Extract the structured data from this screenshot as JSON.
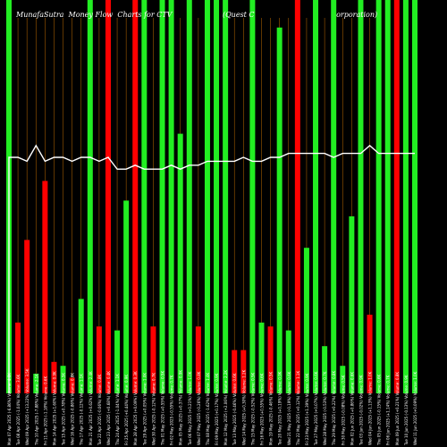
{
  "header": {
    "title_left": "MunafaSutra  Money Flow  Charts for CTV",
    "title_right": "(Quest C                                    orporation)"
  },
  "colors": {
    "background": "#000000",
    "buy": "#22ee22",
    "sell": "#ff0000",
    "grid": "#a05a00",
    "line": "#ffffff",
    "tick_text": "#ffffff"
  },
  "chart_data": {
    "type": "bar",
    "title": "MunafaSutra  Money Flow  Charts for CTV                (Quest C                                    orporation)",
    "grid": true,
    "categories": [
      "Mon 07 Apr 2025",
      "Tue 08 Apr 2025",
      "Wed 09 Apr 2025",
      "Thu 10 Apr 2025",
      "Fri 11 Apr 2025",
      "Mon 14 Apr 2025",
      "Tue 15 Apr 2025",
      "Wed 16 Apr 2025",
      "Thu 17 Apr 2025",
      "Mon 21 Apr 2025",
      "Tue 22 Apr 2025",
      "Wed 23 Apr 2025",
      "Thu 24 Apr 2025",
      "Fri 25 Apr 2025",
      "Mon 28 Apr 2025",
      "Tue 29 Apr 2025",
      "Wed 30 Apr 2025",
      "Thu 01 May 2025",
      "Fri 02 May 2025",
      "Mon 05 May 2025",
      "Tue 06 May 2025",
      "Wed 07 May 2025",
      "Thu 08 May 2025",
      "Fri 09 May 2025",
      "Mon 12 May 2025",
      "Tue 13 May 2025",
      "Wed 14 May 2025",
      "Thu 15 May 2025",
      "Fri 16 May 2025",
      "Mon 19 May 2025",
      "Tue 20 May 2025",
      "Wed 21 May 2025",
      "Thu 22 May 2025",
      "Fri 23 May 2025",
      "Tue 27 May 2025",
      "Wed 28 May 2025",
      "Thu 29 May 2025",
      "Fri 30 May 2025",
      "Mon 02 Jun 2025",
      "Tue 03 Jun 2025",
      "Wed 04 Jun 2025",
      "Thu 05 Jun 2025",
      "Fri 06 Jun 2025",
      "Mon 09 Jun 2025",
      "Tue 10 Jun 2025",
      "Wed 11 Jun 2025"
    ],
    "x_tick_labels": [
      "Mon 07 Apr 2025 (-6.86%) Volume: 4.8K",
      "Tue 08 Apr 2025 (-1.04%) Volume: 3.6K",
      "Wed 09 Apr 2025 (+13.22%) Volume: 3.5K",
      "Thu 10 Apr 2025 (-7.88%) Volume: 2.1K",
      "Fri 11 Apr 2025 (-1.18%) Volume: 0.6K",
      "Mon 14 Apr 2025 (+1.60%) Volume: 0.9K",
      "Tue 15 Apr 2025 (+0.78%) Volume: 0.5K",
      "Wed 16 Apr 2025 (-0.86%) Volume: 0.8K",
      "Thu 17 Apr 2025 (-0.12%) Volume: 1.1K",
      "Mon 21 Apr 2025 (+0.62%) Volume: 2.4K",
      "Tue 22 Apr 2025 (-0.06%) Volume: 0.8K",
      "Wed 23 Apr 2025 (+0.68%) Volume: 0.4K",
      "Thu 24 Apr 2025 (-1.04%) Volume: 1.1K",
      "Fri 25 Apr 2025 (+0.44%) Volume: 0.9K",
      "Mon 28 Apr 2025 (+0.09%) Volume: 0.3K",
      "Tue 29 Apr 2025 (+0.05%) Volume: 1.0K",
      "Wed 30 Apr 2025 (-0.12%) Volume: 0.7K",
      "Thu 01 May 2025 (+0.55%) Volume: 0.5K",
      "Fri 02 May 2025 (-0.55%) Volume: 0.7K",
      "Mon 05 May 2025 (+0.37%) Volume: 0.9K",
      "Tue 06 May 2025 (+0.21%) Volume: 1.0K",
      "Wed 07 May 2025 (-0.26%) Volume: 0.8K",
      "Thu 08 May 2025 (-1.62%) Volume: 1.4K",
      "Fri 09 May 2025 (+0.17%) Volume: 0.9K",
      "Mon 12 May 2025 (+2.06%) Volume: 2.2K",
      "Tue 13 May 2025 (-0.46%) Volume: 0.6K",
      "Wed 14 May 2025 (+0.30%) Volume: 1.2K",
      "Thu 15 May 2025 (-0.52%) Volume: 0.5K",
      "Fri 16 May 2025 (+0.55%) Volume: 0.6K",
      "Mon 19 May 2025 (-0.46%) Volume: 0.5K",
      "Tue 20 May 2025 (+0.19%) Volume: 0.9K",
      "Wed 21 May 2025 (-0.19%) Volume: 0.6K",
      "Thu 22 May 2025 (+0.12%) Volume: 1.1K",
      "Fri 23 May 2025 (+1.39%) Volume: 0.9K",
      "Tue 27 May 2025 (+0.07%) Volume: 0.6K",
      "Wed 28 May 2025 (-0.53%) Volume: 0.7K",
      "Thu 29 May 2025 (+0.22%) Volume: 0.8K",
      "Fri 30 May 2025 (-0.08%) Volume: 0.5K",
      "Mon 02 Jun 2025 (+0.86%) Volume: 0.6K",
      "Tue 03 Jun 2025 (-0.02%) Volume: 0.9K",
      "Wed 04 Jun 2025 (+1.13%) Volume: 1.0K",
      "Thu 05 Jun 2025 (-0.15%) Volume: 0.6K",
      "Fri 06 Jun 2025 (+1.14%) Volume: 0.7K",
      "Mon 09 Jun 2025 (+0.21%) Volume: 0.8K",
      "Tue 10 Jun 2025 (-0.13%) Volume: 0.9K",
      "Wed 11 Jun 2025 (+0.09%) Volume: 1.0K"
    ],
    "series": [
      {
        "values": [
          100,
          18,
          39,
          5,
          54,
          8,
          7,
          4,
          24,
          100,
          17,
          100,
          16,
          49,
          100,
          100,
          17,
          100,
          100,
          66,
          100,
          17,
          100,
          100,
          100,
          11,
          11,
          100,
          18,
          17,
          93,
          16,
          100,
          37,
          100,
          12,
          100,
          7,
          45,
          100,
          20,
          100,
          100,
          100,
          100,
          100
        ],
        "flow": [
          "buy",
          "sell",
          "sell",
          "buy",
          "sell",
          "sell",
          "buy",
          "sell",
          "buy",
          "buy",
          "sell",
          "sell",
          "buy",
          "buy",
          "sell",
          "buy",
          "sell",
          "buy",
          "buy",
          "buy",
          "buy",
          "sell",
          "buy",
          "buy",
          "buy",
          "sell",
          "sell",
          "buy",
          "buy",
          "sell",
          "buy",
          "buy",
          "sell",
          "buy",
          "buy",
          "buy",
          "buy",
          "buy",
          "buy",
          "buy",
          "sell",
          "buy",
          "buy",
          "sell",
          "buy",
          "buy"
        ]
      },
      {
        "type": "line",
        "values": [
          60,
          60,
          59,
          63,
          59,
          60,
          60,
          59,
          60,
          60,
          59,
          60,
          57,
          57,
          58,
          57,
          57,
          57,
          58,
          57,
          58,
          58,
          59,
          59,
          59,
          59,
          60,
          59,
          59,
          60,
          60,
          61,
          61,
          61,
          61,
          61,
          60,
          61,
          61,
          61,
          63,
          61,
          61,
          61,
          61,
          61
        ]
      }
    ]
  }
}
